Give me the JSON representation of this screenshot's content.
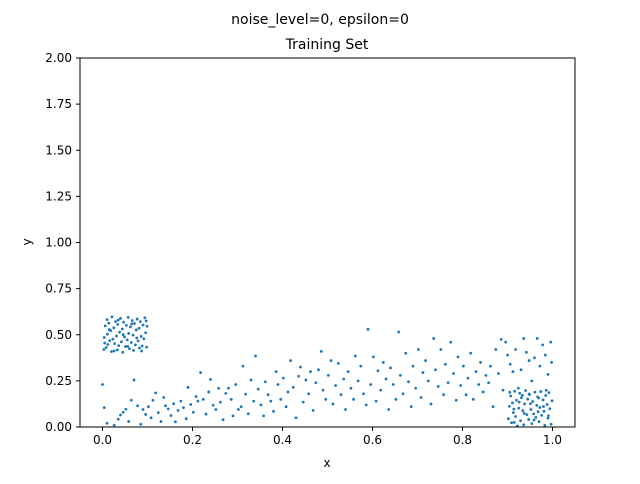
{
  "figure": {
    "suptitle": "noise_level=0, epsilon=0"
  },
  "chart_data": {
    "type": "scatter",
    "title": "Training Set",
    "xlabel": "x",
    "ylabel": "y",
    "xlim": [
      -0.05,
      1.05
    ],
    "ylim": [
      0,
      2.0
    ],
    "x_ticks": [
      0.0,
      0.2,
      0.4,
      0.6,
      0.8,
      1.0
    ],
    "x_tick_labels": [
      "0.0",
      "0.2",
      "0.4",
      "0.6",
      "0.8",
      "1.0"
    ],
    "y_ticks": [
      0.0,
      0.25,
      0.5,
      0.75,
      1.0,
      1.25,
      1.5,
      1.75,
      2.0
    ],
    "y_tick_labels": [
      "0.00",
      "0.25",
      "0.50",
      "0.75",
      "1.00",
      "1.25",
      "1.50",
      "1.75",
      "2.00"
    ],
    "grid": false,
    "marker_color": "#1f77b4",
    "series": [
      {
        "points": [
          [
            0.003,
            0.42
          ],
          [
            0.004,
            0.485
          ],
          [
            0.006,
            0.548
          ],
          [
            0.008,
            0.431
          ],
          [
            0.01,
            0.582
          ],
          [
            0.011,
            0.503
          ],
          [
            0.012,
            0.447
          ],
          [
            0.014,
            0.563
          ],
          [
            0.016,
            0.468
          ],
          [
            0.018,
            0.522
          ],
          [
            0.02,
            0.409
          ],
          [
            0.021,
            0.597
          ],
          [
            0.023,
            0.476
          ],
          [
            0.025,
            0.538
          ],
          [
            0.027,
            0.452
          ],
          [
            0.029,
            0.572
          ],
          [
            0.031,
            0.493
          ],
          [
            0.033,
            0.418
          ],
          [
            0.034,
            0.556
          ],
          [
            0.036,
            0.441
          ],
          [
            0.038,
            0.514
          ],
          [
            0.04,
            0.589
          ],
          [
            0.042,
            0.462
          ],
          [
            0.044,
            0.531
          ],
          [
            0.045,
            0.405
          ],
          [
            0.047,
            0.568
          ],
          [
            0.049,
            0.488
          ],
          [
            0.051,
            0.436
          ],
          [
            0.053,
            0.551
          ],
          [
            0.055,
            0.472
          ],
          [
            0.057,
            0.594
          ],
          [
            0.058,
            0.507
          ],
          [
            0.06,
            0.424
          ],
          [
            0.062,
            0.543
          ],
          [
            0.064,
            0.458
          ],
          [
            0.066,
            0.577
          ],
          [
            0.068,
            0.498
          ],
          [
            0.069,
            0.415
          ],
          [
            0.071,
            0.561
          ],
          [
            0.073,
            0.445
          ],
          [
            0.075,
            0.526
          ],
          [
            0.077,
            0.585
          ],
          [
            0.079,
            0.466
          ],
          [
            0.081,
            0.535
          ],
          [
            0.082,
            0.428
          ],
          [
            0.084,
            0.571
          ],
          [
            0.086,
            0.491
          ],
          [
            0.088,
            0.439
          ],
          [
            0.09,
            0.553
          ],
          [
            0.092,
            0.478
          ],
          [
            0.094,
            0.592
          ],
          [
            0.096,
            0.511
          ],
          [
            0.098,
            0.433
          ],
          [
            0.099,
            0.546
          ],
          [
            0.005,
            0.455
          ],
          [
            0.015,
            0.528
          ],
          [
            0.026,
            0.412
          ],
          [
            0.035,
            0.579
          ],
          [
            0.046,
            0.501
          ],
          [
            0.056,
            0.437
          ],
          [
            0.065,
            0.559
          ],
          [
            0.076,
            0.483
          ],
          [
            0.087,
            0.412
          ],
          [
            0.097,
            0.575
          ],
          [
            0.0,
            0.23
          ],
          [
            0.004,
            0.105
          ],
          [
            0.01,
            0.02
          ],
          [
            0.026,
            0.01
          ],
          [
            0.035,
            0.042
          ],
          [
            0.04,
            0.065
          ],
          [
            0.046,
            0.08
          ],
          [
            0.052,
            0.097
          ],
          [
            0.058,
            0.03
          ],
          [
            0.064,
            0.145
          ],
          [
            0.07,
            0.255
          ],
          [
            0.078,
            0.115
          ],
          [
            0.085,
            0.015
          ],
          [
            0.09,
            0.095
          ],
          [
            0.096,
            0.068
          ],
          [
            0.102,
            0.11
          ],
          [
            0.108,
            0.05
          ],
          [
            0.112,
            0.145
          ],
          [
            0.118,
            0.185
          ],
          [
            0.124,
            0.078
          ],
          [
            0.13,
            0.03
          ],
          [
            0.136,
            0.16
          ],
          [
            0.14,
            0.115
          ],
          [
            0.146,
            0.098
          ],
          [
            0.152,
            0.062
          ],
          [
            0.158,
            0.126
          ],
          [
            0.162,
            0.028
          ],
          [
            0.168,
            0.09
          ],
          [
            0.174,
            0.14
          ],
          [
            0.18,
            0.105
          ],
          [
            0.186,
            0.045
          ],
          [
            0.19,
            0.215
          ],
          [
            0.196,
            0.122
          ],
          [
            0.202,
            0.08
          ],
          [
            0.208,
            0.165
          ],
          [
            0.212,
            0.14
          ],
          [
            0.218,
            0.295
          ],
          [
            0.224,
            0.15
          ],
          [
            0.23,
            0.07
          ],
          [
            0.236,
            0.19
          ],
          [
            0.24,
            0.258
          ],
          [
            0.246,
            0.118
          ],
          [
            0.252,
            0.095
          ],
          [
            0.258,
            0.21
          ],
          [
            0.262,
            0.135
          ],
          [
            0.268,
            0.04
          ],
          [
            0.274,
            0.182
          ],
          [
            0.28,
            0.21
          ],
          [
            0.286,
            0.15
          ],
          [
            0.29,
            0.06
          ],
          [
            0.296,
            0.23
          ],
          [
            0.302,
            0.095
          ],
          [
            0.308,
            0.11
          ],
          [
            0.312,
            0.33
          ],
          [
            0.318,
            0.178
          ],
          [
            0.324,
            0.072
          ],
          [
            0.33,
            0.255
          ],
          [
            0.336,
            0.14
          ],
          [
            0.34,
            0.385
          ],
          [
            0.346,
            0.205
          ],
          [
            0.352,
            0.12
          ],
          [
            0.358,
            0.06
          ],
          [
            0.362,
            0.245
          ],
          [
            0.368,
            0.175
          ],
          [
            0.374,
            0.14
          ],
          [
            0.38,
            0.085
          ],
          [
            0.386,
            0.3
          ],
          [
            0.39,
            0.23
          ],
          [
            0.396,
            0.15
          ],
          [
            0.402,
            0.265
          ],
          [
            0.408,
            0.11
          ],
          [
            0.412,
            0.19
          ],
          [
            0.418,
            0.36
          ],
          [
            0.424,
            0.215
          ],
          [
            0.43,
            0.05
          ],
          [
            0.436,
            0.275
          ],
          [
            0.44,
            0.325
          ],
          [
            0.446,
            0.135
          ],
          [
            0.452,
            0.255
          ],
          [
            0.458,
            0.18
          ],
          [
            0.462,
            0.3
          ],
          [
            0.468,
            0.09
          ],
          [
            0.474,
            0.24
          ],
          [
            0.48,
            0.31
          ],
          [
            0.486,
            0.41
          ],
          [
            0.49,
            0.2
          ],
          [
            0.496,
            0.15
          ],
          [
            0.502,
            0.28
          ],
          [
            0.508,
            0.36
          ],
          [
            0.512,
            0.125
          ],
          [
            0.518,
            0.225
          ],
          [
            0.524,
            0.345
          ],
          [
            0.53,
            0.175
          ],
          [
            0.536,
            0.26
          ],
          [
            0.54,
            0.095
          ],
          [
            0.546,
            0.3
          ],
          [
            0.552,
            0.21
          ],
          [
            0.558,
            0.15
          ],
          [
            0.562,
            0.385
          ],
          [
            0.568,
            0.25
          ],
          [
            0.574,
            0.33
          ],
          [
            0.58,
            0.18
          ],
          [
            0.586,
            0.12
          ],
          [
            0.59,
            0.53
          ],
          [
            0.596,
            0.23
          ],
          [
            0.602,
            0.38
          ],
          [
            0.608,
            0.14
          ],
          [
            0.612,
            0.305
          ],
          [
            0.618,
            0.2
          ],
          [
            0.624,
            0.35
          ],
          [
            0.63,
            0.26
          ],
          [
            0.636,
            0.095
          ],
          [
            0.64,
            0.32
          ],
          [
            0.646,
            0.23
          ],
          [
            0.652,
            0.15
          ],
          [
            0.658,
            0.515
          ],
          [
            0.662,
            0.28
          ],
          [
            0.668,
            0.18
          ],
          [
            0.674,
            0.4
          ],
          [
            0.68,
            0.245
          ],
          [
            0.686,
            0.11
          ],
          [
            0.69,
            0.33
          ],
          [
            0.696,
            0.21
          ],
          [
            0.702,
            0.42
          ],
          [
            0.708,
            0.16
          ],
          [
            0.712,
            0.295
          ],
          [
            0.718,
            0.36
          ],
          [
            0.724,
            0.25
          ],
          [
            0.73,
            0.125
          ],
          [
            0.736,
            0.48
          ],
          [
            0.74,
            0.31
          ],
          [
            0.746,
            0.22
          ],
          [
            0.752,
            0.42
          ],
          [
            0.758,
            0.175
          ],
          [
            0.762,
            0.34
          ],
          [
            0.768,
            0.24
          ],
          [
            0.774,
            0.46
          ],
          [
            0.78,
            0.29
          ],
          [
            0.786,
            0.145
          ],
          [
            0.79,
            0.38
          ],
          [
            0.796,
            0.225
          ],
          [
            0.802,
            0.33
          ],
          [
            0.808,
            0.175
          ],
          [
            0.812,
            0.265
          ],
          [
            0.818,
            0.4
          ],
          [
            0.824,
            0.15
          ],
          [
            0.83,
            0.3
          ],
          [
            0.836,
            0.23
          ],
          [
            0.84,
            0.35
          ],
          [
            0.846,
            0.19
          ],
          [
            0.852,
            0.28
          ],
          [
            0.858,
            0.24
          ],
          [
            0.862,
            0.33
          ],
          [
            0.868,
            0.11
          ],
          [
            0.874,
            0.42
          ],
          [
            0.88,
            0.29
          ],
          [
            0.886,
            0.475
          ],
          [
            0.89,
            0.2
          ],
          [
            0.896,
            0.46
          ],
          [
            0.9,
            0.39
          ],
          [
            0.906,
            0.34
          ],
          [
            0.912,
            0.3
          ],
          [
            0.918,
            0.42
          ],
          [
            0.924,
            0.21
          ],
          [
            0.93,
            0.31
          ],
          [
            0.936,
            0.48
          ],
          [
            0.942,
            0.405
          ],
          [
            0.948,
            0.36
          ],
          [
            0.954,
            0.25
          ],
          [
            0.96,
            0.375
          ],
          [
            0.966,
            0.48
          ],
          [
            0.972,
            0.33
          ],
          [
            0.978,
            0.445
          ],
          [
            0.984,
            0.39
          ],
          [
            0.99,
            0.285
          ],
          [
            0.996,
            0.46
          ],
          [
            0.998,
            0.35
          ],
          [
            0.902,
            0.045
          ],
          [
            0.904,
            0.112
          ],
          [
            0.907,
            0.168
          ],
          [
            0.909,
            0.023
          ],
          [
            0.911,
            0.131
          ],
          [
            0.913,
            0.078
          ],
          [
            0.916,
            0.194
          ],
          [
            0.918,
            0.057
          ],
          [
            0.92,
            0.145
          ],
          [
            0.922,
            0.006
          ],
          [
            0.925,
            0.102
          ],
          [
            0.927,
            0.183
          ],
          [
            0.929,
            0.034
          ],
          [
            0.931,
            0.159
          ],
          [
            0.934,
            0.089
          ],
          [
            0.936,
            0.012
          ],
          [
            0.938,
            0.125
          ],
          [
            0.94,
            0.198
          ],
          [
            0.943,
            0.067
          ],
          [
            0.945,
            0.151
          ],
          [
            0.947,
            0.041
          ],
          [
            0.949,
            0.176
          ],
          [
            0.952,
            0.095
          ],
          [
            0.954,
            0.018
          ],
          [
            0.956,
            0.138
          ],
          [
            0.958,
            0.071
          ],
          [
            0.961,
            0.189
          ],
          [
            0.963,
            0.052
          ],
          [
            0.965,
            0.117
          ],
          [
            0.967,
            0.163
          ],
          [
            0.97,
            0.029
          ],
          [
            0.972,
            0.106
          ],
          [
            0.974,
            0.192
          ],
          [
            0.976,
            0.063
          ],
          [
            0.979,
            0.147
          ],
          [
            0.981,
            0.085
          ],
          [
            0.983,
            0.009
          ],
          [
            0.985,
            0.171
          ],
          [
            0.988,
            0.122
          ],
          [
            0.99,
            0.048
          ],
          [
            0.992,
            0.186
          ],
          [
            0.994,
            0.099
          ],
          [
            0.997,
            0.015
          ],
          [
            0.999,
            0.142
          ],
          [
            0.905,
            0.188
          ],
          [
            0.915,
            0.025
          ],
          [
            0.926,
            0.135
          ],
          [
            0.937,
            0.074
          ],
          [
            0.948,
            0.179
          ],
          [
            0.959,
            0.038
          ],
          [
            0.969,
            0.157
          ],
          [
            0.98,
            0.111
          ],
          [
            0.991,
            0.061
          ],
          [
            0.914,
            0.097
          ],
          [
            0.933,
            0.172
          ],
          [
            0.951,
            0.126
          ],
          [
            0.968,
            0.083
          ],
          [
            0.986,
            0.199
          ]
        ]
      }
    ]
  }
}
